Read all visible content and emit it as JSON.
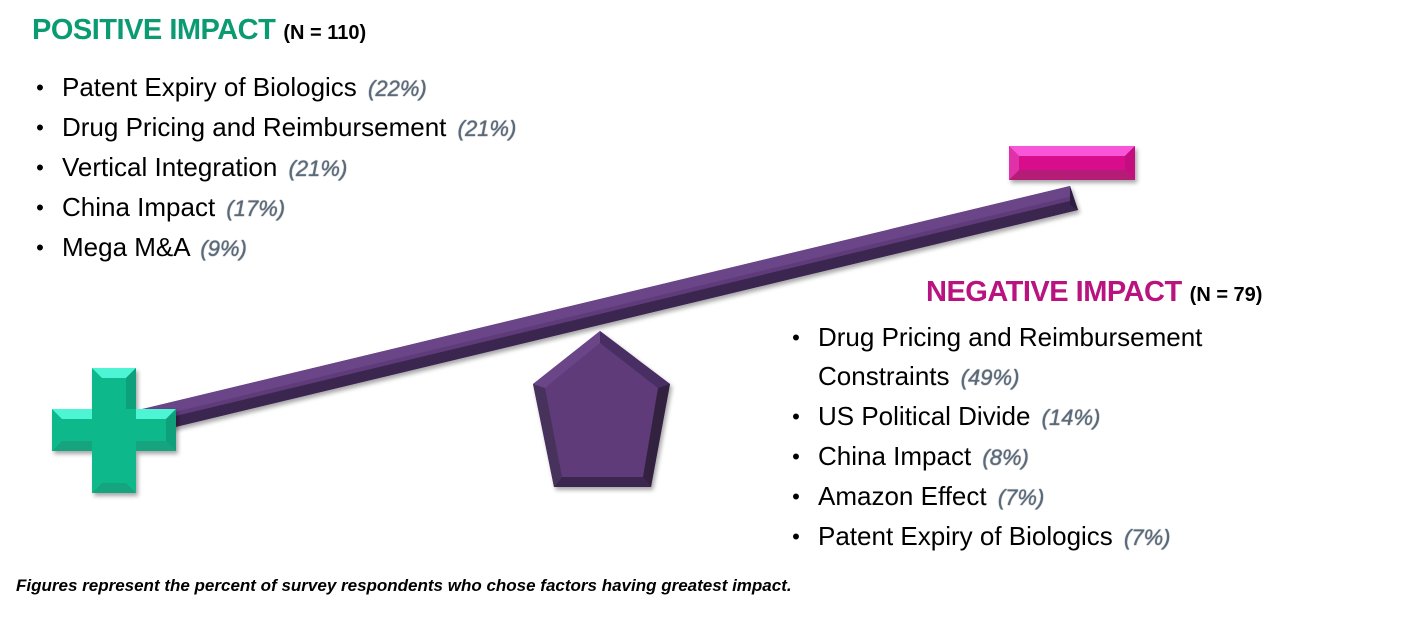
{
  "positive": {
    "title": "POSITIVE IMPACT",
    "count": "(N = 110)",
    "color": "#0a9b72",
    "items": [
      {
        "label": "Patent Expiry of Biologics",
        "pct": "(22%)"
      },
      {
        "label": "Drug Pricing and Reimbursement",
        "pct": "(21%)"
      },
      {
        "label": "Vertical Integration",
        "pct": "(21%)"
      },
      {
        "label": "China Impact",
        "pct": "(17%)"
      },
      {
        "label": "Mega M&A",
        "pct": "(9%)"
      }
    ]
  },
  "negative": {
    "title": "NEGATIVE IMPACT",
    "count": "(N = 79)",
    "color": "#b8137f",
    "items": [
      {
        "label": "Drug Pricing and Reimbursement Constraints",
        "pct": "(49%)"
      },
      {
        "label": "US Political Divide",
        "pct": "(14%)"
      },
      {
        "label": "China Impact",
        "pct": "(8%)"
      },
      {
        "label": "Amazon Effect",
        "pct": "(7%)"
      },
      {
        "label": "Patent Expiry of Biologics",
        "pct": "(7%)"
      }
    ]
  },
  "bullet_glyph": "•",
  "footnote": "Figures represent the percent of survey respondents who chose factors having greatest impact.",
  "icons": {
    "plus": "plus-icon",
    "minus": "minus-icon",
    "fulcrum": "pentagon-fulcrum",
    "beam": "seesaw-beam"
  },
  "colors": {
    "plus": "#0db88a",
    "minus": "#d8108c",
    "beam": "#5e3a7a"
  }
}
